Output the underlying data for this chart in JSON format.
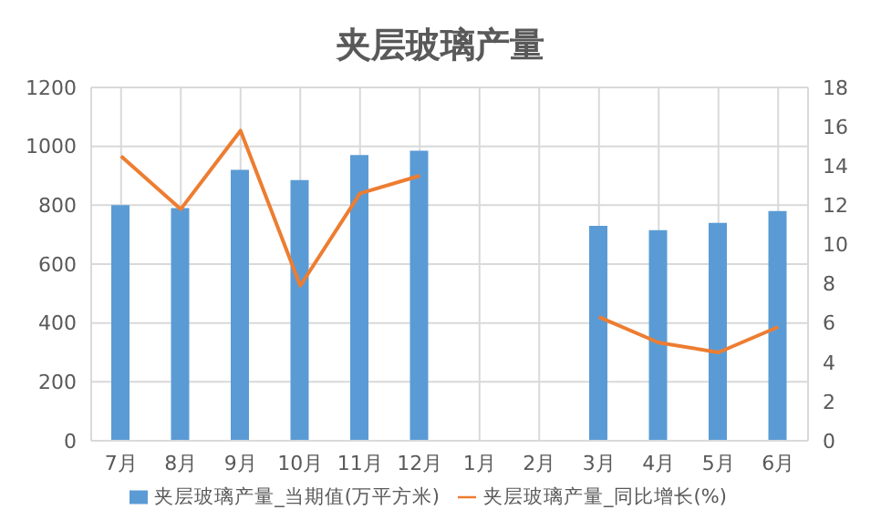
{
  "chart_data": {
    "type": "bar",
    "title": "夹层玻璃产量",
    "categories": [
      "7月",
      "8月",
      "9月",
      "10月",
      "11月",
      "12月",
      "1月",
      "2月",
      "3月",
      "4月",
      "5月",
      "6月"
    ],
    "series": [
      {
        "name": "夹层玻璃产量_当期值(万平方米)",
        "color": "#5b9bd5",
        "values": [
          800,
          790,
          920,
          885,
          970,
          985,
          null,
          null,
          730,
          715,
          740,
          780
        ]
      },
      {
        "name": "夹层玻璃产量_同比增长(%)",
        "type": "line",
        "axis": "y2",
        "color": "#ed7d31",
        "values": [
          14.5,
          11.8,
          15.8,
          7.9,
          12.6,
          13.5,
          null,
          null,
          6.3,
          5.0,
          4.5,
          5.8
        ]
      }
    ],
    "ylim": [
      0,
      1200
    ],
    "yticks": [
      0,
      200,
      400,
      600,
      800,
      1000,
      1200
    ],
    "y2lim": [
      0,
      18
    ],
    "y2ticks": [
      0,
      2,
      4,
      6,
      8,
      10,
      12,
      14,
      16,
      18
    ],
    "grid": true,
    "legend": "bottom",
    "marker": "none"
  }
}
